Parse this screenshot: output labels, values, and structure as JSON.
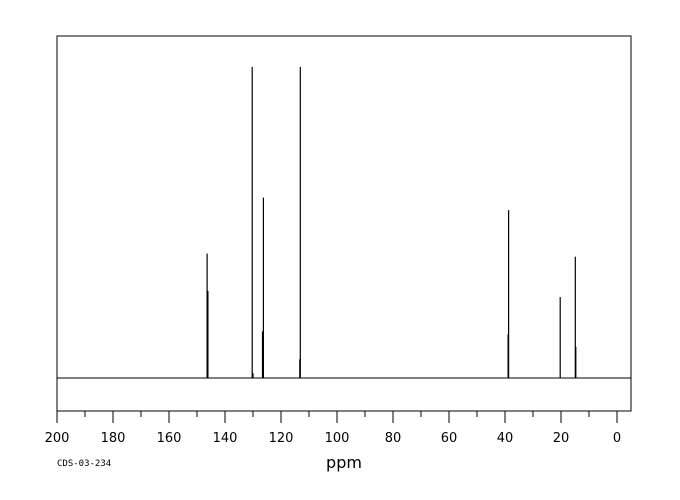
{
  "chart_data": {
    "type": "line",
    "title": "",
    "xlabel": "ppm",
    "ylabel": "",
    "xlim": [
      200,
      -5
    ],
    "x_reversed": true,
    "grid": false,
    "ticks_major": [
      200,
      180,
      160,
      140,
      120,
      100,
      80,
      60,
      40,
      20,
      0
    ],
    "tick_labels": [
      "200",
      "180",
      "160",
      "140",
      "120",
      "100",
      "80",
      "60",
      "40",
      "20",
      "0"
    ],
    "ticks_minor_step": 10,
    "peaks": [
      {
        "ppm": 146.4,
        "intensity": 0.4
      },
      {
        "ppm": 146.1,
        "intensity": 0.28
      },
      {
        "ppm": 130.3,
        "intensity": 1.0
      },
      {
        "ppm": 130.0,
        "intensity": 0.015
      },
      {
        "ppm": 126.3,
        "intensity": 0.58
      },
      {
        "ppm": 126.6,
        "intensity": 0.15
      },
      {
        "ppm": 113.1,
        "intensity": 1.0
      },
      {
        "ppm": 113.3,
        "intensity": 0.06
      },
      {
        "ppm": 38.7,
        "intensity": 0.54
      },
      {
        "ppm": 38.9,
        "intensity": 0.14
      },
      {
        "ppm": 20.3,
        "intensity": 0.26
      },
      {
        "ppm": 14.9,
        "intensity": 0.39
      },
      {
        "ppm": 14.7,
        "intensity": 0.1
      }
    ]
  },
  "footer": {
    "code": "CDS-03-234"
  }
}
